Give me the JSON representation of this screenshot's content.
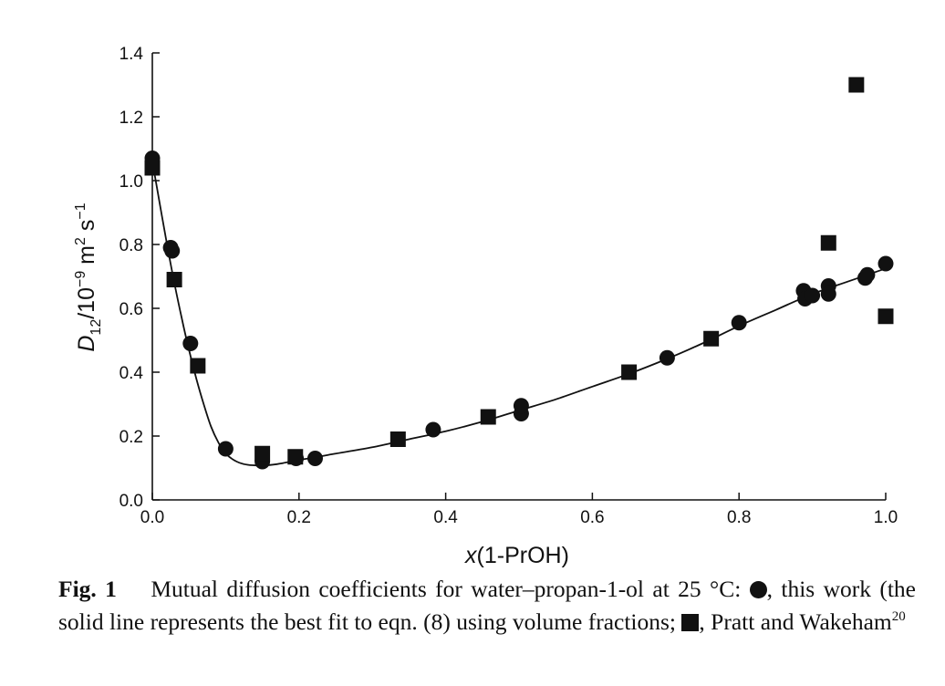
{
  "chart_data": {
    "type": "scatter",
    "xlabel": "x(1-PrOH)",
    "ylabel": "D12/10−9 m2 s−1",
    "xlim": [
      0.0,
      1.0
    ],
    "ylim": [
      0.0,
      1.4
    ],
    "x_ticks": [
      "0.0",
      "0.2",
      "0.4",
      "0.6",
      "0.8",
      "1.0"
    ],
    "y_ticks": [
      "0.0",
      "0.2",
      "0.4",
      "0.6",
      "0.8",
      "1.0",
      "1.2",
      "1.4"
    ],
    "series": [
      {
        "marker": "circle",
        "color": "#111111",
        "points": [
          {
            "x": 0.0,
            "y": 1.07
          },
          {
            "x": 0.025,
            "y": 0.79
          },
          {
            "x": 0.027,
            "y": 0.78
          },
          {
            "x": 0.052,
            "y": 0.49
          },
          {
            "x": 0.1,
            "y": 0.16
          },
          {
            "x": 0.15,
            "y": 0.12
          },
          {
            "x": 0.196,
            "y": 0.13
          },
          {
            "x": 0.222,
            "y": 0.13
          },
          {
            "x": 0.383,
            "y": 0.22
          },
          {
            "x": 0.503,
            "y": 0.27
          },
          {
            "x": 0.503,
            "y": 0.295
          },
          {
            "x": 0.702,
            "y": 0.445
          },
          {
            "x": 0.8,
            "y": 0.555
          },
          {
            "x": 0.888,
            "y": 0.655
          },
          {
            "x": 0.89,
            "y": 0.63
          },
          {
            "x": 0.9,
            "y": 0.64
          },
          {
            "x": 0.922,
            "y": 0.67
          },
          {
            "x": 0.922,
            "y": 0.645
          },
          {
            "x": 0.972,
            "y": 0.695
          },
          {
            "x": 0.975,
            "y": 0.705
          },
          {
            "x": 1.0,
            "y": 0.74
          }
        ]
      },
      {
        "marker": "square",
        "color": "#111111",
        "points": [
          {
            "x": 0.0,
            "y": 1.04
          },
          {
            "x": 0.03,
            "y": 0.69
          },
          {
            "x": 0.062,
            "y": 0.42
          },
          {
            "x": 0.15,
            "y": 0.145
          },
          {
            "x": 0.195,
            "y": 0.135
          },
          {
            "x": 0.335,
            "y": 0.19
          },
          {
            "x": 0.458,
            "y": 0.26
          },
          {
            "x": 0.65,
            "y": 0.4
          },
          {
            "x": 0.762,
            "y": 0.505
          },
          {
            "x": 0.922,
            "y": 0.805
          },
          {
            "x": 0.96,
            "y": 1.3
          },
          {
            "x": 1.0,
            "y": 0.575
          }
        ]
      }
    ],
    "fit_line": {
      "color": "#111111",
      "points": [
        {
          "x": 0.0,
          "y": 1.06
        },
        {
          "x": 0.01,
          "y": 0.93
        },
        {
          "x": 0.02,
          "y": 0.8
        },
        {
          "x": 0.03,
          "y": 0.68
        },
        {
          "x": 0.04,
          "y": 0.57
        },
        {
          "x": 0.05,
          "y": 0.47
        },
        {
          "x": 0.06,
          "y": 0.38
        },
        {
          "x": 0.07,
          "y": 0.3
        },
        {
          "x": 0.08,
          "y": 0.23
        },
        {
          "x": 0.09,
          "y": 0.18
        },
        {
          "x": 0.1,
          "y": 0.145
        },
        {
          "x": 0.115,
          "y": 0.12
        },
        {
          "x": 0.13,
          "y": 0.11
        },
        {
          "x": 0.15,
          "y": 0.108
        },
        {
          "x": 0.17,
          "y": 0.112
        },
        {
          "x": 0.2,
          "y": 0.125
        },
        {
          "x": 0.25,
          "y": 0.145
        },
        {
          "x": 0.3,
          "y": 0.165
        },
        {
          "x": 0.35,
          "y": 0.19
        },
        {
          "x": 0.4,
          "y": 0.215
        },
        {
          "x": 0.45,
          "y": 0.245
        },
        {
          "x": 0.5,
          "y": 0.28
        },
        {
          "x": 0.55,
          "y": 0.315
        },
        {
          "x": 0.6,
          "y": 0.355
        },
        {
          "x": 0.65,
          "y": 0.395
        },
        {
          "x": 0.7,
          "y": 0.44
        },
        {
          "x": 0.75,
          "y": 0.49
        },
        {
          "x": 0.8,
          "y": 0.545
        },
        {
          "x": 0.85,
          "y": 0.595
        },
        {
          "x": 0.9,
          "y": 0.645
        },
        {
          "x": 0.95,
          "y": 0.685
        },
        {
          "x": 1.0,
          "y": 0.725
        }
      ]
    }
  },
  "caption": {
    "fig_label": "Fig. 1",
    "part1": "Mutual diffusion coefficients for water–propan-1-ol at 25 °C:",
    "part2": ", this work (the solid line represents the best fit to eqn. (8) using volume fractions;",
    "part3": ", Pratt and Wakeham",
    "ref": "20"
  }
}
